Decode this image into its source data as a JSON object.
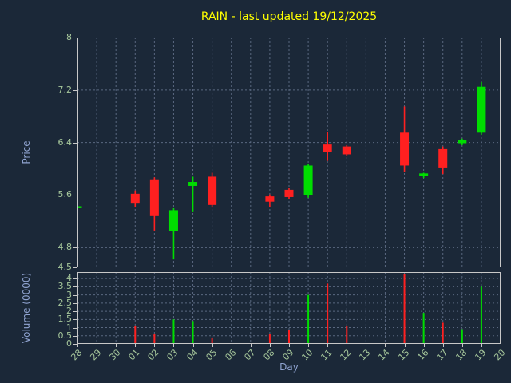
{
  "chart_data": {
    "type": "candlestick",
    "title": "RAIN - last updated 19/12/2025",
    "xlabel": "Day",
    "categories": [
      "28",
      "29",
      "30",
      "01",
      "02",
      "03",
      "04",
      "05",
      "06",
      "07",
      "08",
      "09",
      "10",
      "11",
      "12",
      "13",
      "14",
      "15",
      "16",
      "17",
      "18",
      "19",
      "20"
    ],
    "price_axis": {
      "label": "Price",
      "lim": [
        4.5,
        8.0
      ],
      "ticks": [
        8,
        7.2,
        6.4,
        5.6,
        4.8,
        4.5
      ]
    },
    "volume_axis": {
      "label": "Volume (0000)",
      "lim": [
        0,
        4.4
      ],
      "ticks": [
        4,
        3.5,
        3,
        2.5,
        2,
        1.5,
        1,
        0.5,
        0
      ]
    },
    "grid": true,
    "legend": "none",
    "colors": {
      "background": "#1b2838",
      "frame": "#c8c8c8",
      "grid": "#5a6880",
      "up": "#00dd00",
      "down": "#ff2020",
      "title": "#ffff00",
      "axis_label": "#8fa3d0",
      "tick_label": "#a6c79b"
    },
    "candles": [
      {
        "day": "28",
        "open": 5.4,
        "high": 5.43,
        "low": 5.39,
        "close": 5.43,
        "volume": 0
      },
      {
        "day": "01",
        "open": 5.62,
        "high": 5.67,
        "low": 5.42,
        "close": 5.47,
        "volume": 1.1
      },
      {
        "day": "02",
        "open": 5.84,
        "high": 5.87,
        "low": 5.06,
        "close": 5.28,
        "volume": 0.6
      },
      {
        "day": "03",
        "open": 5.05,
        "high": 5.4,
        "low": 4.62,
        "close": 5.37,
        "volume": 1.5
      },
      {
        "day": "04",
        "open": 5.74,
        "high": 5.88,
        "low": 5.34,
        "close": 5.8,
        "volume": 1.4
      },
      {
        "day": "05",
        "open": 5.88,
        "high": 5.94,
        "low": 5.41,
        "close": 5.45,
        "volume": 0.35
      },
      {
        "day": "08",
        "open": 5.58,
        "high": 5.61,
        "low": 5.42,
        "close": 5.5,
        "volume": 0.6
      },
      {
        "day": "09",
        "open": 5.68,
        "high": 5.71,
        "low": 5.54,
        "close": 5.57,
        "volume": 0.85
      },
      {
        "day": "10",
        "open": 5.6,
        "high": 6.08,
        "low": 5.56,
        "close": 6.05,
        "volume": 3.0
      },
      {
        "day": "11",
        "open": 6.37,
        "high": 6.56,
        "low": 6.12,
        "close": 6.25,
        "volume": 3.7
      },
      {
        "day": "12",
        "open": 6.34,
        "high": 6.36,
        "low": 6.19,
        "close": 6.22,
        "volume": 1.1
      },
      {
        "day": "15",
        "open": 6.55,
        "high": 6.95,
        "low": 5.95,
        "close": 6.05,
        "volume": 4.3
      },
      {
        "day": "16",
        "open": 5.89,
        "high": 5.94,
        "low": 5.86,
        "close": 5.93,
        "volume": 1.9
      },
      {
        "day": "17",
        "open": 6.3,
        "high": 6.34,
        "low": 5.92,
        "close": 6.02,
        "volume": 1.3
      },
      {
        "day": "18",
        "open": 6.39,
        "high": 6.46,
        "low": 6.36,
        "close": 6.44,
        "volume": 0.9
      },
      {
        "day": "19",
        "open": 6.55,
        "high": 7.32,
        "low": 6.52,
        "close": 7.25,
        "volume": 3.5
      }
    ]
  }
}
